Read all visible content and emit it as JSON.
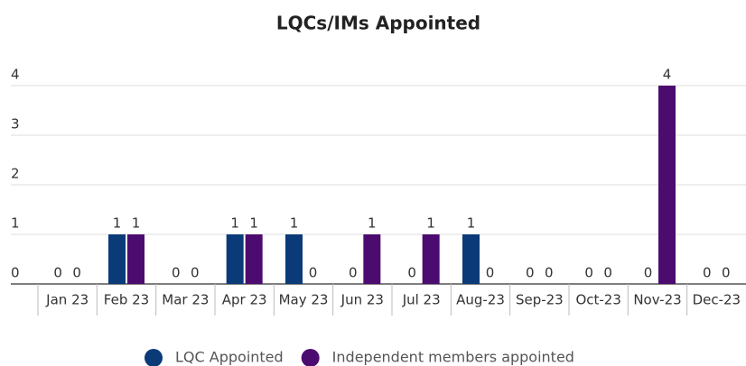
{
  "chart_data": {
    "type": "bar",
    "title": "LQCs/IMs Appointed",
    "categories": [
      "Jan 23",
      "Feb 23",
      "Mar 23",
      "Apr 23",
      "May 23",
      "Jun 23",
      "Jul 23",
      "Aug-23",
      "Sep-23",
      "Oct-23",
      "Nov-23",
      "Dec-23"
    ],
    "series": [
      {
        "name": "LQC Appointed",
        "color": "#0b3a78",
        "values": [
          0,
          1,
          0,
          1,
          1,
          0,
          0,
          1,
          0,
          0,
          0,
          0
        ]
      },
      {
        "name": "Independent members appointed",
        "color": "#4c0c6f",
        "values": [
          0,
          1,
          0,
          1,
          0,
          1,
          1,
          0,
          0,
          0,
          4,
          0
        ]
      }
    ],
    "ylim": [
      0,
      4
    ],
    "yticks": [
      0,
      1,
      2,
      3,
      4
    ],
    "grid": true
  }
}
